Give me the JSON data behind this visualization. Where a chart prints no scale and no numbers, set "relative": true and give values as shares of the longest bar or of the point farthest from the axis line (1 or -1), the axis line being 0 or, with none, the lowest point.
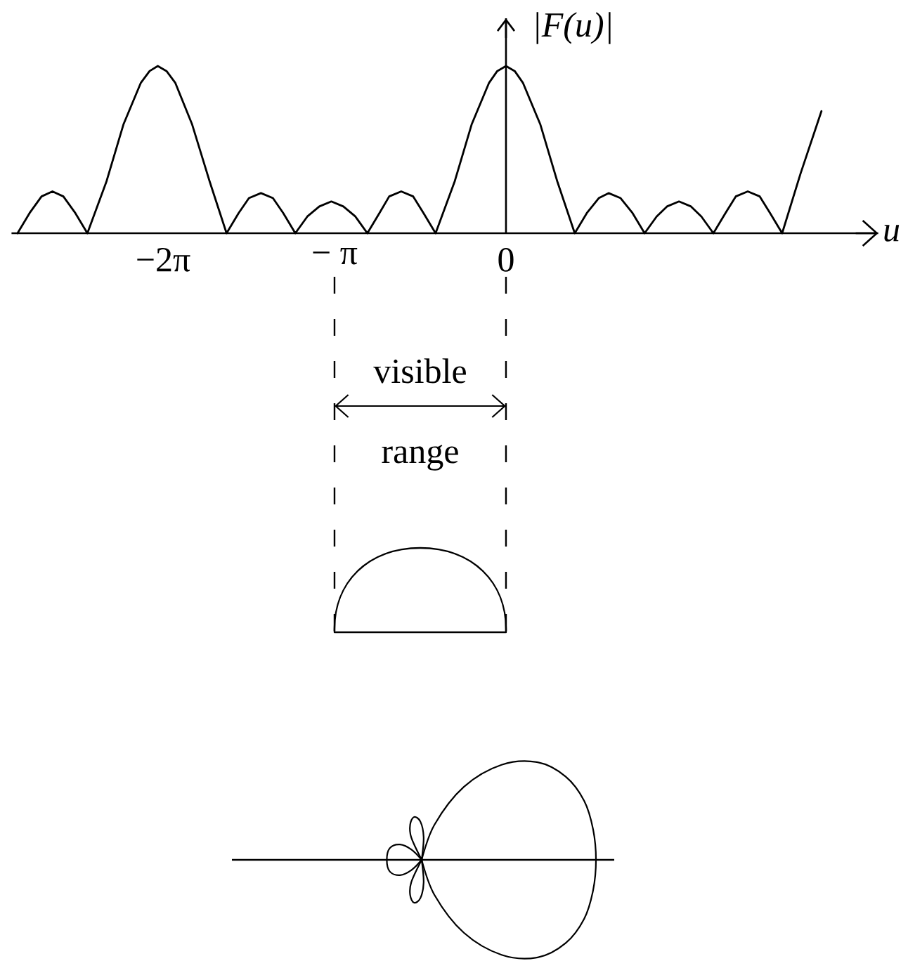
{
  "chart_data": {
    "type": "line",
    "relative": true,
    "ylabel": "|F(u)|",
    "xlabel": "u",
    "color": "#000000",
    "x": [
      -8.95,
      -8.73,
      -8.51,
      -8.31,
      -8.11,
      -7.89,
      -7.67,
      -7.32,
      -7.01,
      -6.69,
      -6.53,
      -6.38,
      -6.22,
      -6.06,
      -5.75,
      -5.43,
      -5.12,
      -4.9,
      -4.71,
      -4.49,
      -4.27,
      -4.08,
      -3.86,
      -3.64,
      -3.42,
      -3.2,
      -2.98,
      -2.76,
      -2.54,
      -2.32,
      -2.14,
      -1.92,
      -1.7,
      -1.51,
      -1.29,
      -0.94,
      -0.63,
      -0.31,
      -0.16,
      0,
      0.16,
      0.31,
      0.63,
      0.94,
      1.26,
      1.48,
      1.7,
      1.88,
      2.1,
      2.32,
      2.54,
      2.76,
      2.95,
      3.17,
      3.39,
      3.58,
      3.8,
      4.02,
      4.21,
      4.43,
      4.65,
      4.84,
      5.06,
      5.4,
      5.78
    ],
    "values": [
      0,
      0.12,
      0.22,
      0.25,
      0.22,
      0.12,
      0,
      0.31,
      0.65,
      0.9,
      0.97,
      1,
      0.97,
      0.9,
      0.65,
      0.31,
      0,
      0.12,
      0.21,
      0.24,
      0.21,
      0.12,
      0,
      0.1,
      0.16,
      0.19,
      0.16,
      0.1,
      0,
      0.12,
      0.22,
      0.25,
      0.22,
      0.12,
      0,
      0.31,
      0.65,
      0.9,
      0.97,
      1,
      0.97,
      0.9,
      0.65,
      0.31,
      0,
      0.12,
      0.21,
      0.24,
      0.21,
      0.12,
      0,
      0.1,
      0.16,
      0.19,
      0.16,
      0.1,
      0,
      0.12,
      0.22,
      0.25,
      0.22,
      0.12,
      0,
      0.36,
      0.73
    ],
    "xlim": [
      -9.06,
      6.82
    ],
    "xticks": [
      {
        "value": -6.283,
        "label": "−2π"
      },
      {
        "value": -3.142,
        "label": "− π"
      },
      0
    ],
    "annotations": [
      "visible range"
    ]
  }
}
